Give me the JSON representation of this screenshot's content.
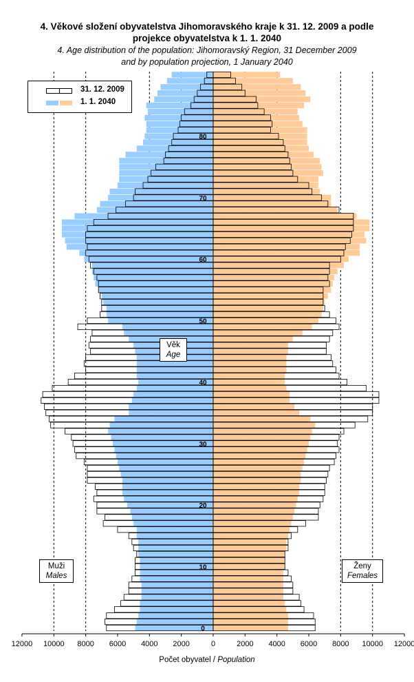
{
  "title": {
    "line1": "4. Věkové složení obyvatelstva Jihomoravského kraje k 31. 12. 2009 a podle",
    "line2": "projekce obyvatelstva k 1. 1. 2040",
    "line3": "4. Age distribution of the population: Jihomoravský Region, 31 December 2009",
    "line4": "and by population projection, 1 January 2040"
  },
  "labels": {
    "age_cz": "Věk",
    "age_en": "Age",
    "males_cz": "Muži",
    "males_en": "Males",
    "females_cz": "Ženy",
    "females_en": "Females",
    "xaxis_cz": "Počet obyvatel / ",
    "xaxis_en": "Population"
  },
  "colors": {
    "fill_2040_males": "#99ccff",
    "fill_2040_females": "#ffcc99",
    "outline_2009": "#000000",
    "gridline": "#000000"
  },
  "chart_data": {
    "type": "bar",
    "orientation": "horizontal-pyramid",
    "xlabel": "Počet obyvatel / Population",
    "ylabel": "Věk / Age",
    "xlim": [
      -12000,
      12000
    ],
    "xticks": [
      -12000,
      -10000,
      -8000,
      -6000,
      -4000,
      -2000,
      0,
      2000,
      4000,
      6000,
      8000,
      10000,
      12000
    ],
    "xtick_labels": [
      "12000",
      "10000",
      "8000",
      "6000",
      "4000",
      "2000",
      "0",
      "2000",
      "4000",
      "6000",
      "8000",
      "10000",
      "12000"
    ],
    "age_ticks": [
      0,
      10,
      20,
      30,
      40,
      50,
      60,
      70,
      80
    ],
    "gridlines": "vertical dashed at 2000, 4000, 8000, 10000",
    "legend": {
      "position": "top-left",
      "entries": [
        "31. 12. 2009",
        "1. 1. 2040"
      ]
    },
    "ages": [
      0,
      1,
      2,
      3,
      4,
      5,
      6,
      7,
      8,
      9,
      10,
      11,
      12,
      13,
      14,
      15,
      16,
      17,
      18,
      19,
      20,
      21,
      22,
      23,
      24,
      25,
      26,
      27,
      28,
      29,
      30,
      31,
      32,
      33,
      34,
      35,
      36,
      37,
      38,
      39,
      40,
      41,
      42,
      43,
      44,
      45,
      46,
      47,
      48,
      49,
      50,
      51,
      52,
      53,
      54,
      55,
      56,
      57,
      58,
      59,
      60,
      61,
      62,
      63,
      64,
      65,
      66,
      67,
      68,
      69,
      70,
      71,
      72,
      73,
      74,
      75,
      76,
      77,
      78,
      79,
      80,
      81,
      82,
      83,
      84,
      85,
      86,
      87,
      88,
      89,
      90
    ],
    "series": [
      {
        "name": "31. 12. 2009",
        "style": "outline",
        "males": [
          6700,
          6800,
          6700,
          6200,
          5800,
          5600,
          5300,
          5300,
          5100,
          4900,
          4900,
          4900,
          4800,
          5000,
          5100,
          5300,
          6000,
          6900,
          6800,
          7300,
          7300,
          7500,
          7300,
          7400,
          7900,
          7900,
          7900,
          8100,
          8600,
          8700,
          8800,
          8900,
          9300,
          10200,
          10300,
          10500,
          10600,
          10800,
          10700,
          10100,
          9100,
          8700,
          8000,
          8100,
          8000,
          7700,
          7800,
          7700,
          7600,
          8500,
          7900,
          7100,
          7000,
          7000,
          7100,
          7200,
          7200,
          7300,
          7500,
          7700,
          7800,
          8000,
          7900,
          8000,
          8000,
          7900,
          7500,
          6600,
          6100,
          5500,
          5000,
          4900,
          4400,
          4100,
          3900,
          3600,
          3100,
          3000,
          2800,
          2600,
          2500,
          2200,
          2100,
          2000,
          1800,
          1400,
          1200,
          1000,
          800,
          550,
          400
        ],
        "females": [
          6400,
          6400,
          6300,
          5700,
          5500,
          5400,
          5000,
          5000,
          4900,
          4700,
          4500,
          4500,
          4500,
          4700,
          4700,
          4900,
          5300,
          5800,
          6600,
          6600,
          6700,
          6900,
          7000,
          7000,
          7100,
          7200,
          7300,
          7600,
          7700,
          7900,
          7800,
          7900,
          8200,
          8900,
          9700,
          10000,
          10000,
          10400,
          10400,
          9600,
          8400,
          7900,
          7700,
          7500,
          7400,
          7100,
          7100,
          7300,
          7500,
          7900,
          7700,
          7300,
          7000,
          6900,
          6900,
          6900,
          7300,
          7200,
          7300,
          7300,
          8000,
          8200,
          8300,
          8600,
          8700,
          8800,
          8800,
          8800,
          7900,
          7200,
          6800,
          6200,
          6000,
          5300,
          5000,
          4900,
          4800,
          4700,
          4500,
          4400,
          4100,
          3600,
          3700,
          3600,
          3200,
          2800,
          2700,
          2000,
          1800,
          1400,
          1100
        ]
      },
      {
        "name": "1. 1. 2040",
        "style": "filled",
        "males": [
          4900,
          4800,
          4700,
          4600,
          4600,
          4500,
          4500,
          4500,
          4600,
          4600,
          4600,
          4600,
          4700,
          4700,
          4700,
          4800,
          4800,
          5000,
          5100,
          5200,
          5400,
          5600,
          5700,
          5700,
          5700,
          5800,
          5900,
          6000,
          6100,
          6200,
          6300,
          6400,
          6600,
          6500,
          6200,
          5300,
          5300,
          5100,
          5000,
          4800,
          4700,
          4800,
          4800,
          4800,
          4800,
          4900,
          5000,
          5300,
          5600,
          5700,
          6600,
          6700,
          6700,
          6900,
          7000,
          7200,
          7400,
          7500,
          7600,
          7600,
          8100,
          8400,
          9200,
          9300,
          9500,
          9500,
          9500,
          8700,
          7300,
          7100,
          6600,
          6500,
          6000,
          5900,
          5900,
          5900,
          5900,
          5500,
          4800,
          4400,
          4300,
          4200,
          4200,
          4300,
          4100,
          4200,
          3700,
          3500,
          3300,
          2900,
          2600
        ],
        "females": [
          4700,
          4700,
          4700,
          4600,
          4500,
          4400,
          4400,
          4400,
          4400,
          4400,
          4500,
          4500,
          4500,
          4600,
          4600,
          4700,
          4800,
          4900,
          5000,
          5100,
          5200,
          5300,
          5400,
          5400,
          5500,
          5500,
          5600,
          5700,
          5800,
          5900,
          6000,
          6100,
          6200,
          6400,
          6100,
          5400,
          5100,
          4800,
          4800,
          4600,
          4500,
          4500,
          4600,
          4600,
          4600,
          4700,
          4700,
          5000,
          5600,
          6200,
          6600,
          6800,
          6900,
          7000,
          7200,
          7400,
          7500,
          7600,
          7800,
          8200,
          8500,
          9200,
          9200,
          9600,
          9500,
          9800,
          9800,
          9000,
          7800,
          7400,
          7400,
          6700,
          6600,
          6600,
          6900,
          6800,
          6700,
          6300,
          6000,
          5900,
          5900,
          5900,
          5600,
          5400,
          5300,
          5700,
          6100,
          5800,
          5500,
          5000,
          4200
        ]
      }
    ]
  }
}
